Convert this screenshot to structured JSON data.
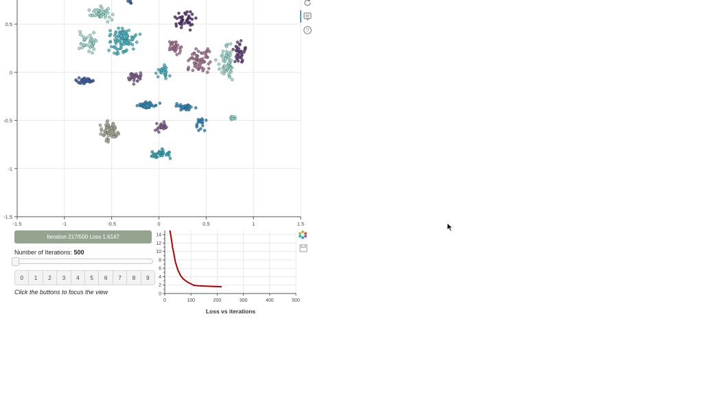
{
  "scatter": {
    "x_ticks": [
      "-1.5",
      "-1",
      "-0.5",
      "0",
      "0.5",
      "1",
      "1.5"
    ],
    "y_ticks": [
      "0.5",
      "0",
      "-0.5",
      "-1",
      "-1.5"
    ],
    "x_range": [
      -1.5,
      1.5
    ],
    "y_range": [
      -1.5,
      0.75
    ],
    "grid": true
  },
  "colors": {
    "digit0": "#3a5fa3",
    "digit1": "#3fb4c1",
    "digit2": "#7a5a8e",
    "digit3": "#a06a8c",
    "digit4": "#2d86b8",
    "digit5": "#4b2a6b",
    "digit6": "#8fd6c9",
    "digit7": "#a2a292",
    "digit8": "#5f3d7a",
    "digit9": "#2aa6b8",
    "loss_line": "#b30000",
    "status_bg": "#94a48e"
  },
  "toolbar": {
    "icons": [
      "reset-icon",
      "hover-icon",
      "help-icon"
    ]
  },
  "status": {
    "text": "Iteration 217/500 Loss 1.6147"
  },
  "iterations": {
    "label": "Number of Iterations: ",
    "value": "500"
  },
  "digit_buttons": [
    "0",
    "1",
    "2",
    "3",
    "4",
    "5",
    "6",
    "7",
    "8",
    "9"
  ],
  "hint": "Click the buttons to focus the view",
  "loss_plot_toolbar": {
    "icons": [
      "bokeh-logo-icon",
      "save-icon"
    ]
  },
  "chart_data": {
    "type": "line",
    "title": "Loss vs iterations",
    "xlabel": "Loss vs iterations",
    "ylabel": "",
    "xlim": [
      0,
      500
    ],
    "ylim": [
      0,
      15
    ],
    "x_ticks": [
      "0",
      "100",
      "200",
      "300",
      "400",
      "500"
    ],
    "y_ticks": [
      "0",
      "2",
      "4",
      "6",
      "8",
      "10",
      "12",
      "14"
    ],
    "grid": true,
    "series": [
      {
        "x": [
          20,
          25,
          30,
          35,
          40,
          50,
          60,
          70,
          80,
          90,
          100,
          110,
          130,
          150,
          180,
          200,
          217
        ],
        "y": [
          15,
          13,
          10.8,
          9.4,
          7.6,
          5.6,
          4.3,
          3.5,
          3.0,
          2.6,
          2.3,
          1.95,
          1.85,
          1.78,
          1.7,
          1.65,
          1.6147
        ]
      }
    ]
  }
}
